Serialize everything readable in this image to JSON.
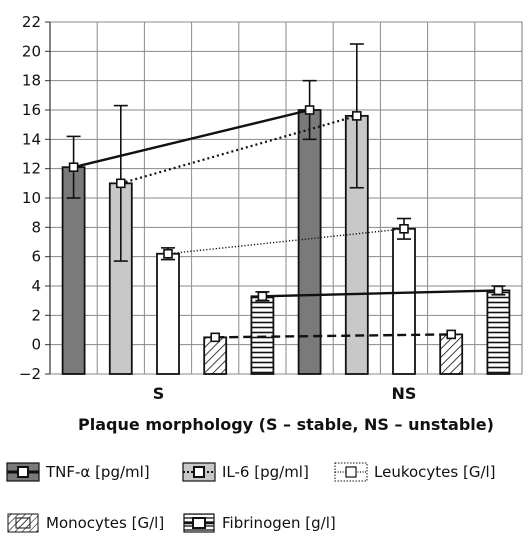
{
  "chart_data": {
    "type": "bar",
    "xlabel": "Plaque morphology (S – stable, NS – unstable)",
    "categories": [
      "S",
      "NS"
    ],
    "ylim": [
      -2,
      22
    ],
    "yticks": [
      -2,
      0,
      2,
      4,
      6,
      8,
      10,
      12,
      14,
      16,
      18,
      20,
      22
    ],
    "grid": true,
    "legend_position": "bottom",
    "series": [
      {
        "name": "TNF-α [pg/ml]",
        "values": [
          12.1,
          16.0
        ],
        "error": [
          2.1,
          2.0
        ],
        "fill": "#7a7a7a",
        "pattern": "solid",
        "line": "solid"
      },
      {
        "name": "IL-6 [pg/ml]",
        "values": [
          11.0,
          15.6
        ],
        "error": [
          5.3,
          4.9
        ],
        "fill": "#c8c8c8",
        "pattern": "solid",
        "line": "dotted"
      },
      {
        "name": "Leukocytes [G/l]",
        "values": [
          6.2,
          7.9
        ],
        "error": [
          0.4,
          0.7
        ],
        "fill": "#ffffff",
        "pattern": "solid",
        "line": "finedotted"
      },
      {
        "name": "Monocytes [G/l]",
        "values": [
          0.5,
          0.7
        ],
        "error": [
          0.05,
          0.05
        ],
        "fill": "#ffffff",
        "pattern": "diagonal",
        "line": "dashed"
      },
      {
        "name": "Fibrinogen [g/l]",
        "values": [
          3.3,
          3.7
        ],
        "error": [
          0.3,
          0.3
        ],
        "fill": "#ffffff",
        "pattern": "horizontal",
        "line": "solid"
      }
    ]
  }
}
